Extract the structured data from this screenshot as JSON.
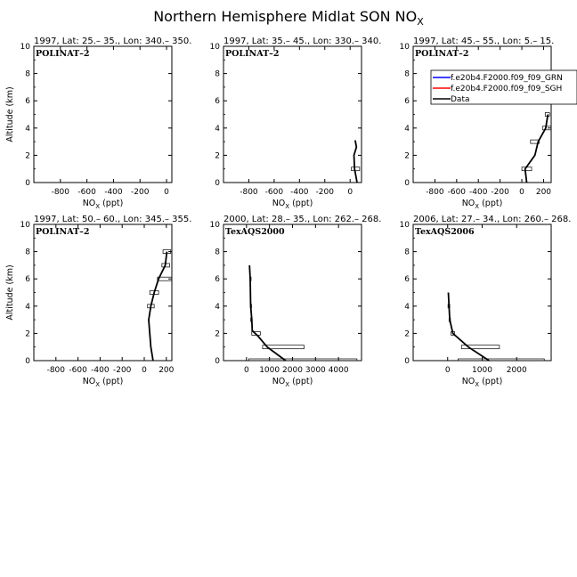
{
  "figure": {
    "title": "Northern Hemisphere Midlat SON NO",
    "title_sub": "X"
  },
  "legend": {
    "entries": [
      {
        "label": "f.e20b4.F2000.f09_f09_GRN",
        "color": "#0000ff"
      },
      {
        "label": "f.e20b4.F2000.f09_f09_SGH",
        "color": "#ff0000"
      },
      {
        "label": "Data",
        "color": "#000000"
      }
    ]
  },
  "chart_data": [
    {
      "type": "line",
      "header": "1997, Lat: 25.– 35., Lon: 340.– 350.",
      "campaign": "POLINAT–2",
      "xlabel_main": "NO",
      "xlabel_sub": "X",
      "xlabel_unit": " (ppt)",
      "ylabel": "Altitude (km)",
      "xlim": [
        -1000,
        40
      ],
      "ylim": [
        0,
        10
      ],
      "xticks": [
        -800,
        -600,
        -400,
        -200,
        0
      ],
      "yticks": [
        0,
        2,
        4,
        6,
        8,
        10
      ],
      "show_yticklabels": true,
      "series": [],
      "boxes": []
    },
    {
      "type": "line",
      "header": "1997, Lat: 35.– 45., Lon: 330.– 340.",
      "campaign": "POLINAT–2",
      "xlabel_main": "NO",
      "xlabel_sub": "X",
      "xlabel_unit": " (ppt)",
      "ylabel": "",
      "xlim": [
        -1000,
        90
      ],
      "ylim": [
        0,
        10
      ],
      "xticks": [
        -800,
        -600,
        -400,
        -200,
        0
      ],
      "yticks": [
        0,
        2,
        4,
        6,
        8,
        10
      ],
      "show_yticklabels": true,
      "series": [
        {
          "name": "Data",
          "color": "#000000",
          "x": [
            55,
            35,
            30,
            50,
            40
          ],
          "y": [
            0,
            1,
            2,
            2.6,
            3.1
          ]
        }
      ],
      "boxes": [
        {
          "xmin": 10,
          "xmax": 75,
          "y": 1
        }
      ]
    },
    {
      "type": "line",
      "header": "1997, Lat: 45.– 55., Lon: 5.– 15.",
      "campaign": "POLINAT–2",
      "xlabel_main": "NO",
      "xlabel_sub": "X",
      "xlabel_unit": " (ppt)",
      "ylabel": "",
      "xlim": [
        -1000,
        270
      ],
      "ylim": [
        0,
        10
      ],
      "xticks": [
        -800,
        -600,
        -400,
        -200,
        0,
        200
      ],
      "yticks": [
        0,
        2,
        4,
        6,
        8,
        10
      ],
      "show_yticklabels": true,
      "series": [
        {
          "name": "Data",
          "color": "#000000",
          "x": [
            45,
            30,
            120,
            150,
            220,
            240
          ],
          "y": [
            0,
            1,
            2,
            3,
            4,
            5
          ]
        }
      ],
      "boxes": [
        {
          "xmin": 0,
          "xmax": 90,
          "y": 1
        },
        {
          "xmin": 80,
          "xmax": 160,
          "y": 3
        },
        {
          "xmin": 190,
          "xmax": 270,
          "y": 4
        },
        {
          "xmin": 215,
          "xmax": 255,
          "y": 5
        }
      ]
    },
    {
      "type": "line",
      "header": "1997, Lat: 50.– 60., Lon: 345.– 355.",
      "campaign": "POLINAT–2",
      "xlabel_main": "NO",
      "xlabel_sub": "X",
      "xlabel_unit": " (ppt)",
      "ylabel": "Altitude (km)",
      "xlim": [
        -1000,
        250
      ],
      "ylim": [
        0,
        10
      ],
      "xticks": [
        -800,
        -600,
        -400,
        -200,
        0,
        200
      ],
      "yticks": [
        0,
        2,
        4,
        6,
        8,
        10
      ],
      "show_yticklabels": true,
      "series": [
        {
          "name": "Data",
          "color": "#000000",
          "x": [
            80,
            60,
            50,
            40,
            60,
            90,
            130,
            190,
            205
          ],
          "y": [
            0,
            1,
            2,
            3,
            4,
            5,
            6,
            7,
            8
          ]
        }
      ],
      "boxes": [
        {
          "xmin": 30,
          "xmax": 90,
          "y": 4
        },
        {
          "xmin": 50,
          "xmax": 130,
          "y": 5
        },
        {
          "xmin": 120,
          "xmax": 250,
          "y": 6
        },
        {
          "xmin": 160,
          "xmax": 230,
          "y": 7
        },
        {
          "xmin": 170,
          "xmax": 240,
          "y": 8
        }
      ]
    },
    {
      "type": "line",
      "header": "2000, Lat: 28.– 35., Lon: 262.– 268.",
      "campaign": "TexAQS2000",
      "xlabel_main": "NO",
      "xlabel_sub": "X",
      "xlabel_unit": " (ppt)",
      "ylabel": "",
      "xlim": [
        -1000,
        5000
      ],
      "ylim": [
        0,
        10
      ],
      "xticks": [
        0,
        1000,
        2000,
        3000,
        4000
      ],
      "yticks": [
        0,
        2,
        4,
        6,
        8,
        10
      ],
      "show_yticklabels": true,
      "series": [
        {
          "name": "Data",
          "color": "#000000",
          "x": [
            1700,
            900,
            500,
            250,
            230,
            180,
            160,
            130
          ],
          "y": [
            0,
            1,
            1.8,
            2.2,
            3,
            4,
            6,
            7
          ]
        }
      ],
      "boxes": [
        {
          "xmin": 100,
          "xmax": 4800,
          "y": 0
        },
        {
          "xmin": 700,
          "xmax": 2500,
          "y": 1
        },
        {
          "xmin": 230,
          "xmax": 600,
          "y": 2
        },
        {
          "xmin": 180,
          "xmax": 240,
          "y": 3
        },
        {
          "xmin": 170,
          "xmax": 220,
          "y": 4
        },
        {
          "xmin": 150,
          "xmax": 200,
          "y": 6
        }
      ]
    },
    {
      "type": "line",
      "header": "2006, Lat: 27.– 34., Lon: 260.– 268.",
      "campaign": "TexAQS2006",
      "xlabel_main": "NO",
      "xlabel_sub": "X",
      "xlabel_unit": " (ppt)",
      "ylabel": "",
      "xlim": [
        -1000,
        3000
      ],
      "ylim": [
        0,
        10
      ],
      "xticks": [
        0,
        1000,
        2000
      ],
      "yticks": [
        0,
        2,
        4,
        6,
        8,
        10
      ],
      "show_yticklabels": true,
      "series": [
        {
          "name": "Data",
          "color": "#000000",
          "x": [
            1200,
            600,
            150,
            60,
            40,
            20
          ],
          "y": [
            0,
            1,
            2,
            3,
            4,
            5
          ]
        }
      ],
      "boxes": [
        {
          "xmin": 300,
          "xmax": 2800,
          "y": 0
        },
        {
          "xmin": 400,
          "xmax": 1500,
          "y": 1
        },
        {
          "xmin": 100,
          "xmax": 200,
          "y": 2
        },
        {
          "xmin": 40,
          "xmax": 80,
          "y": 3
        },
        {
          "xmin": 10,
          "xmax": 60,
          "y": 4
        }
      ]
    }
  ]
}
